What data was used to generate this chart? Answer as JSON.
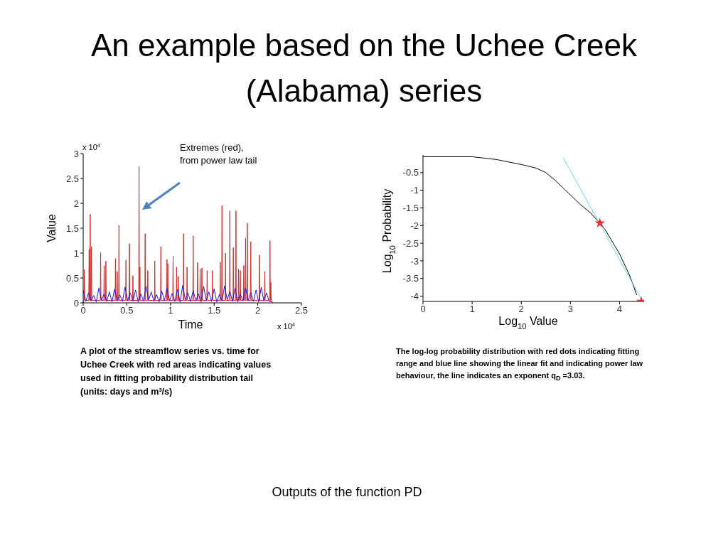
{
  "chart_data": [
    {
      "type": "line",
      "title": "An example based on the Uchee Creek (Alabama) series",
      "xlabel": "Time",
      "ylabel": "Value",
      "xlim": [
        0,
        2.5
      ],
      "xticks": [
        0,
        0.5,
        1,
        1.5,
        2,
        2.5
      ],
      "ylim": [
        0,
        3
      ],
      "yticks": [
        0,
        0.5,
        1,
        1.5,
        2,
        2.5,
        3
      ],
      "series": [
        {
          "color": "#d42a2a",
          "x": [
            0,
            0.01,
            0.014,
            0.018,
            0.064,
            0.068,
            0.072,
            0.077,
            0.081,
            0.085,
            0.091,
            0.095,
            0.099,
            0.196,
            0.2,
            0.204,
            0.236,
            0.24,
            0.244,
            0.256,
            0.26,
            0.264,
            0.366,
            0.37,
            0.374,
            0.386,
            0.39,
            0.394,
            0.406,
            0.41,
            0.414,
            0.486,
            0.49,
            0.494,
            0.526,
            0.53,
            0.534,
            0.566,
            0.57,
            0.574,
            0.636,
            0.64,
            0.644,
            0.646,
            0.65,
            0.654,
            0.706,
            0.71,
            0.714,
            0.736,
            0.74,
            0.744,
            0.816,
            0.82,
            0.824,
            0.886,
            0.89,
            0.894,
            0.956,
            0.96,
            0.964,
            0.966,
            0.97,
            0.974,
            1.026,
            1.03,
            1.034,
            1.066,
            1.07,
            1.074,
            1.086,
            1.09,
            1.094,
            1.146,
            1.15,
            1.154,
            1.186,
            1.19,
            1.194,
            1.256,
            1.26,
            1.264,
            1.306,
            1.31,
            1.314,
            1.336,
            1.34,
            1.344,
            1.356,
            1.36,
            1.364,
            1.416,
            1.42,
            1.424,
            1.476,
            1.48,
            1.484,
            1.566,
            1.57,
            1.574,
            1.586,
            1.59,
            1.594,
            1.626,
            1.63,
            1.634,
            1.676,
            1.68,
            1.684,
            1.716,
            1.72,
            1.724,
            1.746,
            1.75,
            1.754,
            1.776,
            1.78,
            1.784,
            1.796,
            1.8,
            1.804,
            1.836,
            1.84,
            1.844,
            1.856,
            1.86,
            1.864,
            1.876,
            1.88,
            1.884,
            1.916,
            1.92,
            1.924,
            2.016,
            2.02,
            2.024,
            2.076,
            2.08,
            2.084,
            2.136,
            2.14,
            2.144,
            2.146,
            2.15,
            2.154,
            2.17
          ],
          "values": [
            0,
            0.05,
            0.67,
            0.05,
            0.05,
            1.08,
            0.05,
            0.05,
            1.78,
            0.05,
            0.05,
            1.13,
            0.05,
            0.05,
            1.01,
            0.05,
            0.05,
            0.75,
            0.05,
            0.05,
            0.84,
            0.05,
            0.05,
            0.89,
            0.05,
            0.05,
            0.63,
            0.05,
            0.05,
            1.56,
            0.05,
            0.05,
            0.86,
            0.05,
            0.05,
            1.19,
            0.05,
            0.05,
            0.55,
            0.05,
            0.05,
            2.74,
            0.05,
            0.05,
            0.72,
            0.05,
            0.05,
            1.39,
            0.05,
            0.05,
            0.65,
            0.05,
            0.05,
            0.84,
            0.05,
            0.05,
            1.13,
            0.05,
            0.05,
            0.87,
            0.05,
            0.05,
            0.79,
            0.05,
            0.05,
            0.94,
            0.05,
            0.05,
            0.72,
            0.05,
            0.05,
            0.53,
            0.05,
            0.05,
            1.39,
            0.05,
            0.05,
            0.72,
            0.05,
            0.05,
            1.35,
            0.05,
            0.05,
            0.81,
            0.05,
            0.05,
            0.68,
            0.05,
            0.05,
            0.7,
            0.05,
            0.05,
            0.65,
            0.05,
            0.05,
            0.65,
            0.05,
            0.05,
            0.82,
            0.05,
            0.05,
            1.95,
            0.05,
            0.05,
            1.0,
            0.05,
            0.05,
            1.85,
            0.05,
            0.05,
            1.11,
            0.05,
            0.05,
            1.85,
            0.05,
            0.05,
            0.68,
            0.05,
            0.05,
            0.65,
            0.05,
            0.05,
            0.75,
            0.05,
            0.05,
            1.3,
            0.05,
            0.05,
            1.6,
            0.05,
            0.05,
            1.23,
            0.05,
            0.05,
            0.96,
            0.05,
            0.05,
            0.63,
            0.05,
            0.05,
            1.25,
            0.05,
            0.05,
            0.41,
            0.05,
            0
          ]
        },
        {
          "color": "#1a1ae6",
          "x": [
            0,
            0.03,
            0.06,
            0.09,
            0.12,
            0.15,
            0.18,
            0.21,
            0.24,
            0.27,
            0.3,
            0.33,
            0.36,
            0.39,
            0.42,
            0.45,
            0.48,
            0.51,
            0.54,
            0.57,
            0.6,
            0.63,
            0.66,
            0.69,
            0.72,
            0.75,
            0.78,
            0.81,
            0.84,
            0.87,
            0.9,
            0.93,
            0.96,
            0.99,
            1.02,
            1.05,
            1.08,
            1.11,
            1.14,
            1.17,
            1.2,
            1.23,
            1.26,
            1.29,
            1.32,
            1.35,
            1.38,
            1.41,
            1.44,
            1.47,
            1.5,
            1.53,
            1.56,
            1.59,
            1.62,
            1.65,
            1.68,
            1.71,
            1.74,
            1.77,
            1.8,
            1.83,
            1.86,
            1.89,
            1.92,
            1.95,
            1.98,
            2.01,
            2.04,
            2.07,
            2.1,
            2.13,
            2.16
          ],
          "values": [
            0.25,
            0.03,
            0.2,
            0.04,
            0.15,
            0.02,
            0.3,
            0.05,
            0.18,
            0.03,
            0.22,
            0.02,
            0.28,
            0.04,
            0.16,
            0.03,
            0.32,
            0.05,
            0.2,
            0.03,
            0.26,
            0.02,
            0.18,
            0.04,
            0.33,
            0.06,
            0.22,
            0.03,
            0.17,
            0.02,
            0.24,
            0.04,
            0.3,
            0.05,
            0.19,
            0.03,
            0.27,
            0.02,
            0.35,
            0.06,
            0.2,
            0.03,
            0.25,
            0.04,
            0.18,
            0.02,
            0.33,
            0.05,
            0.22,
            0.03,
            0.28,
            0.02,
            0.17,
            0.04,
            0.34,
            0.06,
            0.23,
            0.03,
            0.29,
            0.02,
            0.18,
            0.04,
            0.3,
            0.05,
            0.21,
            0.03,
            0.26,
            0.02,
            0.31,
            0.04,
            0.2,
            0.03,
            0.02
          ]
        }
      ],
      "annotations": [
        "x 10$^{4}$",
        "x 10$^{4}$",
        "Extremes (red),\nfrom power law tail",
        "A plot of the streamflow series vs. time for Uchee Creek with red areas indicating values used in fitting probability distribution tail (units: days and m³/s)"
      ]
    },
    {
      "type": "line",
      "xlabel": "Log$_{10}$ Value",
      "ylabel": "Log$_{10}$ Probability",
      "xlim": [
        0,
        4.5
      ],
      "xticks": [
        0,
        1,
        2,
        3,
        4
      ],
      "ylim": [
        -4.15,
        0
      ],
      "yticks": [
        -4,
        -3.5,
        -3,
        -2.5,
        -2,
        -1.5,
        -1,
        -0.5
      ],
      "series": [
        {
          "color": "#000000",
          "x": [
            0,
            1,
            1.5,
            2,
            2.3,
            2.5,
            2.7,
            2.9,
            3,
            3.2,
            3.4,
            3.6,
            3.7,
            3.8,
            3.9,
            4,
            4.1,
            4.2,
            4.3,
            4.35
          ],
          "values": [
            -0.05,
            -0.05,
            -0.13,
            -0.27,
            -0.37,
            -0.5,
            -0.73,
            -1,
            -1.13,
            -1.4,
            -1.63,
            -1.93,
            -2.1,
            -2.33,
            -2.57,
            -2.8,
            -3.1,
            -3.4,
            -3.77,
            -3.97
          ]
        },
        {
          "type": "scatter",
          "marker": "star",
          "color": "#e03030",
          "x": [
            3.6,
            4.44
          ],
          "values": [
            -1.93,
            -4.15
          ]
        },
        {
          "color": "#66d9e6",
          "x": [
            2.85,
            4.45
          ],
          "values": [
            -0.07,
            -4.1
          ]
        }
      ],
      "annotations": [
        "The log-log probability distribution with red dots indicating fitting range and blue line showing the linear fit and indicating power law behaviour, the line indicates an exponent q$_{D}$ =3.03.",
        "Outputs of the function PD"
      ]
    }
  ]
}
